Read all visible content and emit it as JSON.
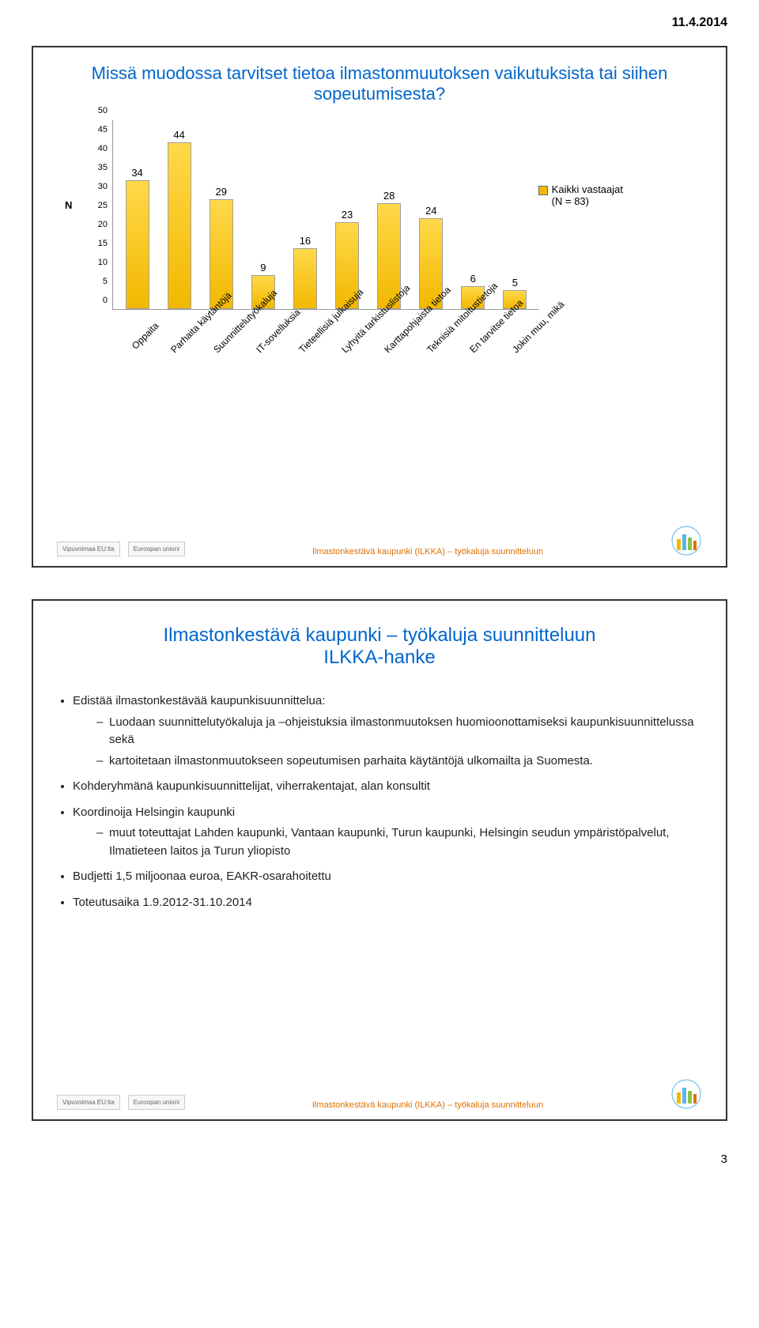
{
  "page_date": "11.4.2014",
  "page_number": "3",
  "slide1": {
    "title": "Missä muodossa tarvitset tietoa ilmastonmuutoksen vaikutuksista tai siihen sopeutumisesta?",
    "chart": {
      "type": "bar",
      "y_axis_label": "N",
      "ylim": [
        0,
        50
      ],
      "ytick_step": 5,
      "yticks": [
        "0",
        "5",
        "10",
        "15",
        "20",
        "25",
        "30",
        "35",
        "40",
        "45",
        "50"
      ],
      "categories": [
        "Oppaita",
        "Parhaita käytäntöjä",
        "Suunnittelutyökaluja",
        "IT-sovelluksia",
        "Tieteellisiä julkaisuja",
        "Lyhyitä tarkistuslistoja",
        "Karttapohjaista tietoa",
        "Teknisiä mitoitustietoja",
        "En tarvitse tietoa",
        "Jokin muu, mikä"
      ],
      "values": [
        34,
        44,
        29,
        9,
        16,
        23,
        28,
        24,
        6,
        5
      ],
      "bar_fill": "#f2b800",
      "bar_border": "#a0a0a0",
      "bg_color": "#ffffff",
      "label_rotation": -45,
      "legend": {
        "swatch_color": "#f2b800",
        "line1": "Kaikki vastaajat",
        "line2": "(N = 83)"
      }
    },
    "footer_text": "Ilmastonkestävä kaupunki (ILKKA) – työkaluja suunnitteluun",
    "footer_logos": [
      "Vipuvoimaa EU:lta",
      "Euroopan unioni"
    ]
  },
  "slide2": {
    "title_line1": "Ilmastonkestävä kaupunki – työkaluja suunnitteluun",
    "title_line2": "ILKKA-hanke",
    "bullets": [
      {
        "text": "Edistää ilmastonkestävää kaupunkisuunnittelua:",
        "sub": [
          "Luodaan suunnittelutyökaluja ja –ohjeistuksia ilmastonmuutoksen huomioonottamiseksi kaupunkisuunnittelussa sekä",
          "kartoitetaan ilmastonmuutokseen sopeutumisen parhaita käytäntöjä ulkomailta ja Suomesta."
        ]
      },
      {
        "text": "Kohderyhmänä kaupunkisuunnittelijat, viherrakentajat, alan konsultit"
      },
      {
        "text": "Koordinoija Helsingin kaupunki",
        "sub": [
          "muut toteuttajat Lahden kaupunki, Vantaan kaupunki, Turun kaupunki, Helsingin seudun ympäristöpalvelut, Ilmatieteen laitos ja Turun yliopisto"
        ]
      },
      {
        "text": "Budjetti 1,5 miljoonaa euroa, EAKR-osarahoitettu"
      },
      {
        "text": "Toteutusaika 1.9.2012-31.10.2014"
      }
    ],
    "footer_text": "Ilmastonkestävä kaupunki (ILKKA) – työkaluja suunnitteluun",
    "footer_logos": [
      "Vipuvoimaa EU:lta",
      "Euroopan unioni"
    ]
  }
}
